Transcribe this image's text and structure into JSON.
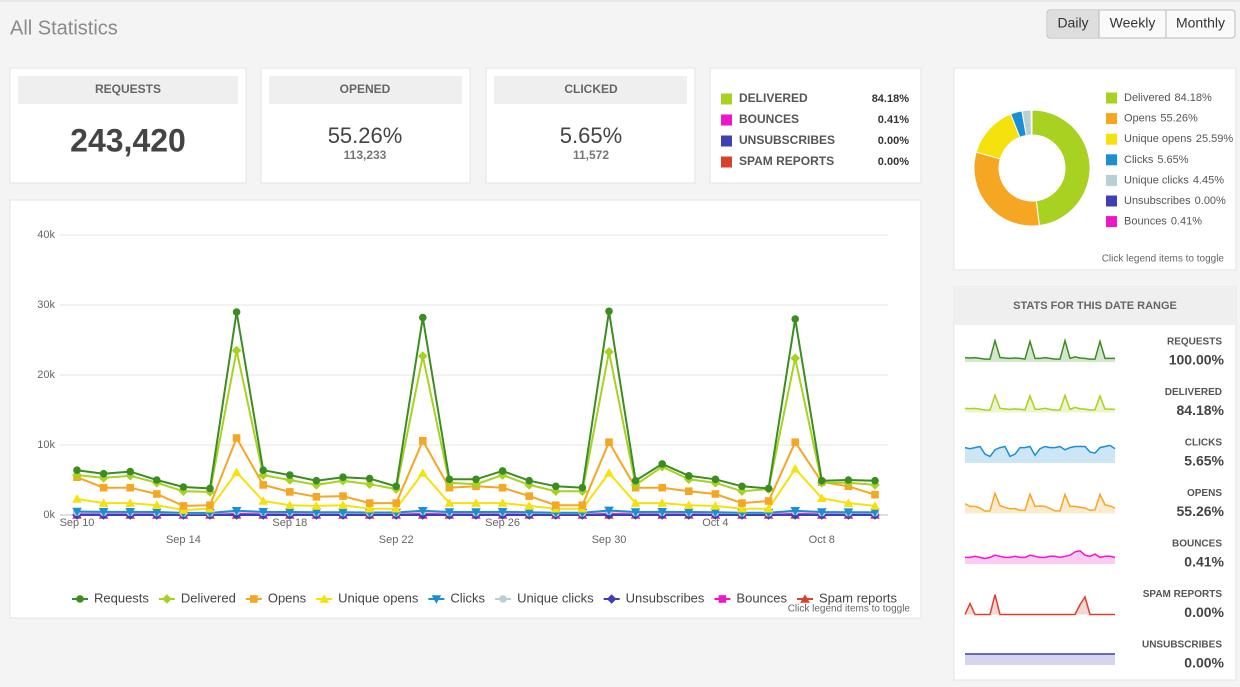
{
  "header": {
    "title": "All Statistics",
    "tabs": [
      "Daily",
      "Weekly",
      "Monthly"
    ],
    "active_tab": 0
  },
  "cards": [
    {
      "label": "REQUESTS",
      "value": "243,420"
    },
    {
      "label": "OPENED",
      "value": "55.26%",
      "sub": "113,233"
    },
    {
      "label": "CLICKED",
      "value": "5.65%",
      "sub": "11,572"
    }
  ],
  "status_list": [
    {
      "name": "DELIVERED",
      "value": "84.18%",
      "color": "#a8d122"
    },
    {
      "name": "BOUNCES",
      "value": "0.41%",
      "color": "#ee16c9"
    },
    {
      "name": "UNSUBSCRIBES",
      "value": "0.00%",
      "color": "#3f3fb4"
    },
    {
      "name": "SPAM REPORTS",
      "value": "0.00%",
      "color": "#d9412c"
    }
  ],
  "line_chart": {
    "type": "line",
    "note": "Click legend items to toggle",
    "categories": [
      "Sep 10",
      null,
      null,
      null,
      "Sep 14",
      null,
      null,
      null,
      "Sep 18",
      null,
      null,
      null,
      "Sep 22",
      null,
      null,
      null,
      "Sep 26",
      null,
      null,
      null,
      "Sep 30",
      null,
      null,
      null,
      "Oct 4",
      null,
      null,
      null,
      "Oct 8",
      null,
      null
    ],
    "ylim": [
      0,
      40000
    ],
    "yticks": [
      {
        "value": 0,
        "label": "0k"
      },
      {
        "value": 10000,
        "label": "10k"
      },
      {
        "value": 20000,
        "label": "20k"
      },
      {
        "value": 30000,
        "label": "30k"
      },
      {
        "value": 40000,
        "label": "40k"
      }
    ],
    "grid": true,
    "series": [
      {
        "name": "Requests",
        "color": "#3a8d22",
        "marker": "circle",
        "values": [
          6400,
          5900,
          6200,
          5000,
          4000,
          3800,
          29000,
          6400,
          5700,
          4900,
          5400,
          5200,
          4100,
          28200,
          5100,
          5100,
          6300,
          4900,
          4100,
          3900,
          29100,
          4900,
          7300,
          5600,
          5100,
          4100,
          3800,
          28000,
          4900,
          5000,
          4900
        ]
      },
      {
        "name": "Delivered",
        "color": "#a8d122",
        "marker": "diamond",
        "values": [
          5700,
          5300,
          5600,
          4600,
          3400,
          3300,
          23500,
          5700,
          5000,
          4300,
          4900,
          4400,
          3700,
          22700,
          4600,
          4400,
          5700,
          4300,
          3400,
          3400,
          23300,
          4300,
          6900,
          5100,
          4600,
          3400,
          3700,
          22400,
          4600,
          4600,
          4300
        ]
      },
      {
        "name": "Opens",
        "color": "#f5a623",
        "marker": "square",
        "values": [
          5400,
          3900,
          3900,
          3000,
          1300,
          1400,
          11000,
          4300,
          3300,
          2600,
          2700,
          1700,
          1700,
          10600,
          3900,
          4100,
          3900,
          2700,
          1400,
          1400,
          10400,
          3900,
          3900,
          3400,
          3000,
          1700,
          2000,
          10400,
          4700,
          4100,
          2900
        ]
      },
      {
        "name": "Unique opens",
        "color": "#f5e10b",
        "marker": "triangle",
        "values": [
          2300,
          1700,
          1700,
          1400,
          700,
          900,
          6100,
          2000,
          1400,
          1300,
          1400,
          900,
          900,
          6000,
          1700,
          1700,
          1700,
          1300,
          900,
          900,
          6000,
          1700,
          1700,
          1400,
          1300,
          900,
          900,
          6600,
          2400,
          1700,
          1300
        ]
      },
      {
        "name": "Clicks",
        "color": "#1a8fd4",
        "marker": "triangle-down",
        "values": [
          500,
          450,
          450,
          420,
          300,
          300,
          600,
          450,
          420,
          400,
          400,
          350,
          350,
          600,
          420,
          420,
          450,
          400,
          320,
          320,
          650,
          420,
          450,
          420,
          400,
          320,
          330,
          600,
          420,
          400,
          400
        ]
      },
      {
        "name": "Unique clicks",
        "color": "#b8cfd4",
        "marker": "circle",
        "values": [
          400,
          380,
          380,
          350,
          250,
          250,
          500,
          380,
          350,
          330,
          330,
          300,
          300,
          500,
          350,
          350,
          380,
          330,
          270,
          270,
          520,
          350,
          380,
          350,
          330,
          270,
          280,
          500,
          350,
          330,
          330
        ]
      },
      {
        "name": "Unsubscribes",
        "color": "#3f3fb4",
        "marker": "diamond",
        "values": [
          0,
          0,
          0,
          0,
          0,
          0,
          0,
          0,
          0,
          0,
          0,
          0,
          0,
          0,
          0,
          0,
          0,
          0,
          0,
          0,
          0,
          0,
          0,
          0,
          0,
          0,
          0,
          0,
          0,
          0,
          0
        ]
      },
      {
        "name": "Bounces",
        "color": "#ee16c9",
        "marker": "square",
        "values": [
          120,
          100,
          100,
          90,
          60,
          60,
          150,
          110,
          100,
          90,
          90,
          80,
          80,
          140,
          100,
          100,
          110,
          90,
          70,
          70,
          150,
          100,
          110,
          100,
          90,
          70,
          70,
          140,
          100,
          90,
          90
        ]
      },
      {
        "name": "Spam reports",
        "color": "#d9412c",
        "marker": "triangle",
        "values": [
          0,
          0,
          0,
          0,
          0,
          0,
          0,
          0,
          0,
          0,
          0,
          0,
          0,
          0,
          0,
          0,
          0,
          0,
          0,
          0,
          0,
          0,
          0,
          0,
          0,
          0,
          0,
          0,
          0,
          0,
          0
        ]
      }
    ]
  },
  "donut_chart": {
    "type": "pie",
    "note": "Click legend items to toggle",
    "categories": [
      "Delivered",
      "Opens",
      "Unique opens",
      "Clicks",
      "Unique clicks",
      "Unsubscribes",
      "Bounces"
    ],
    "values": [
      84.18,
      55.26,
      25.59,
      5.65,
      4.45,
      0.0,
      0.41
    ],
    "value_labels": [
      "84.18%",
      "55.26%",
      "25.59%",
      "5.65%",
      "4.45%",
      "0.00%",
      "0.41%"
    ],
    "colors": [
      "#a8d122",
      "#f5a623",
      "#f5e10b",
      "#1a8fd4",
      "#b8cfd4",
      "#3f3fb4",
      "#ee16c9"
    ]
  },
  "stats": {
    "title": "STATS FOR THIS DATE RANGE",
    "rows": [
      {
        "name": "REQUESTS",
        "value": "100.00%",
        "color": "#3a8d22",
        "ylim": [
          0,
          30
        ],
        "spark": [
          6,
          5.5,
          6,
          5,
          4,
          4,
          29,
          6,
          5.5,
          5,
          5.5,
          5,
          4,
          28,
          5,
          5,
          6,
          5,
          4,
          4,
          29,
          5,
          7,
          5.5,
          5,
          4,
          4,
          28,
          5,
          5,
          5
        ]
      },
      {
        "name": "DELIVERED",
        "value": "84.18%",
        "color": "#a8d122",
        "ylim": [
          0,
          30
        ],
        "spark": [
          5.7,
          5.3,
          5.6,
          4.6,
          3.4,
          3.3,
          23.5,
          5.7,
          5,
          4.3,
          4.9,
          4.4,
          3.7,
          22.7,
          4.6,
          4.4,
          5.7,
          4.3,
          3.4,
          3.4,
          23.3,
          4.3,
          6.9,
          5.1,
          4.6,
          3.4,
          3.7,
          22.4,
          4.6,
          4.6,
          4.3
        ]
      },
      {
        "name": "CLICKS",
        "value": "5.65%",
        "color": "#1a8fd4",
        "ylim": [
          0,
          10
        ],
        "spark": [
          7,
          6.5,
          7,
          7.5,
          4,
          3,
          6,
          7,
          7.5,
          3,
          4,
          7,
          7,
          7.5,
          3.5,
          6.5,
          7.5,
          7,
          7,
          7.5,
          6,
          7,
          7.5,
          7.5,
          7.5,
          5,
          4.5,
          7,
          7.5,
          8,
          6.5
        ]
      },
      {
        "name": "OPENS",
        "value": "55.26%",
        "color": "#f5a623",
        "ylim": [
          0,
          12
        ],
        "spark": [
          5.4,
          3.9,
          3.9,
          3,
          1.3,
          1.4,
          11,
          4.3,
          3.3,
          2.6,
          2.7,
          1.7,
          1.7,
          10.6,
          3.9,
          4.1,
          3.9,
          2.7,
          1.4,
          1.4,
          10.4,
          3.9,
          3.9,
          3.4,
          3,
          1.7,
          2,
          10.4,
          4.7,
          4.1,
          2.9
        ]
      },
      {
        "name": "BOUNCES",
        "value": "0.41%",
        "color": "#ee16c9",
        "ylim": [
          0,
          10
        ],
        "spark": [
          3,
          3,
          3.5,
          3,
          2.5,
          3,
          4,
          3.5,
          3,
          3,
          3.5,
          3,
          3,
          4,
          3.5,
          3,
          3,
          3.5,
          3.5,
          3,
          3.5,
          4,
          5.5,
          6,
          4,
          3.5,
          4.5,
          3,
          3.5,
          3.5,
          3
        ]
      },
      {
        "name": "SPAM REPORTS",
        "value": "0.00%",
        "color": "#d9412c",
        "ylim": [
          0,
          10
        ],
        "spark": [
          0,
          5,
          0,
          0,
          0,
          0,
          9,
          0,
          0,
          0,
          0,
          0,
          0,
          0,
          0,
          0,
          0,
          0,
          0,
          0,
          0,
          0,
          0,
          4.5,
          8,
          0,
          0,
          0,
          0,
          0,
          0
        ]
      },
      {
        "name": "UNSUBSCRIBES",
        "value": "0.00%",
        "color": "#3f3fb4",
        "ylim": [
          -1,
          1
        ],
        "spark": [
          0,
          0,
          0,
          0,
          0,
          0,
          0,
          0,
          0,
          0,
          0,
          0,
          0,
          0,
          0,
          0,
          0,
          0,
          0,
          0,
          0,
          0,
          0,
          0,
          0,
          0,
          0,
          0,
          0,
          0,
          0
        ]
      }
    ]
  }
}
